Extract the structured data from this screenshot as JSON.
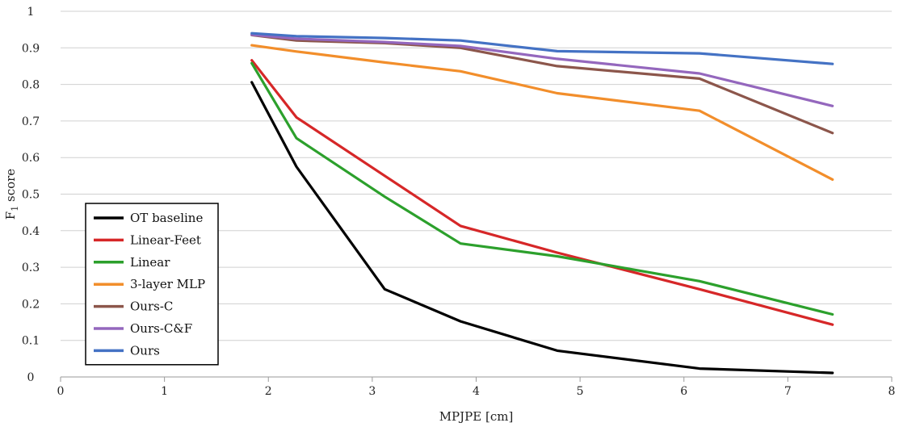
{
  "chart_data": {
    "type": "line",
    "xlabel": "MPJPE [cm]",
    "ylabel_main": "F",
    "ylabel_sub": "1",
    "ylabel_rest": " score",
    "xlim": [
      0,
      8
    ],
    "ylim": [
      0,
      1
    ],
    "x_ticks": [
      0,
      1,
      2,
      3,
      4,
      5,
      6,
      7,
      8
    ],
    "x_tick_labels": [
      "0",
      "1",
      "2",
      "3",
      "4",
      "5",
      "6",
      "7",
      "8"
    ],
    "y_ticks": [
      0,
      0.1,
      0.2,
      0.3,
      0.4,
      0.5,
      0.6,
      0.7,
      0.8,
      0.9,
      1
    ],
    "y_tick_labels": [
      "0",
      "0.1",
      "0.2",
      "0.3",
      "0.4",
      "0.5",
      "0.6",
      "0.7",
      "0.8",
      "0.9",
      "1"
    ],
    "grid": "horizontal",
    "legend_position": "bottom-left",
    "series": [
      {
        "name": "OT baseline",
        "color": "#000000",
        "x": [
          1.84,
          2.27,
          3.12,
          3.85,
          4.78,
          6.15,
          7.43
        ],
        "y": [
          0.806,
          0.575,
          0.24,
          0.152,
          0.072,
          0.023,
          0.011
        ]
      },
      {
        "name": "Linear-Feet",
        "color": "#d62728",
        "x": [
          1.84,
          2.27,
          3.12,
          3.85,
          4.78,
          6.15,
          7.43
        ],
        "y": [
          0.866,
          0.71,
          0.55,
          0.413,
          0.34,
          0.24,
          0.143
        ]
      },
      {
        "name": "Linear",
        "color": "#2ca02c",
        "x": [
          1.84,
          2.27,
          3.12,
          3.85,
          4.78,
          6.15,
          7.43
        ],
        "y": [
          0.858,
          0.653,
          0.493,
          0.365,
          0.33,
          0.262,
          0.171
        ]
      },
      {
        "name": "3-layer MLP",
        "color": "#f28e2b",
        "x": [
          1.84,
          2.27,
          3.12,
          3.85,
          4.78,
          6.15,
          7.43
        ],
        "y": [
          0.907,
          0.89,
          0.86,
          0.836,
          0.776,
          0.728,
          0.54
        ]
      },
      {
        "name": "Ours-C",
        "color": "#8c564b",
        "x": [
          1.84,
          2.27,
          3.12,
          3.85,
          4.78,
          6.15,
          7.43
        ],
        "y": [
          0.935,
          0.92,
          0.913,
          0.9,
          0.85,
          0.816,
          0.667
        ]
      },
      {
        "name": "Ours-C&F",
        "color": "#9467bd",
        "x": [
          1.84,
          2.27,
          3.12,
          3.85,
          4.78,
          6.15,
          7.43
        ],
        "y": [
          0.936,
          0.925,
          0.916,
          0.905,
          0.87,
          0.83,
          0.741
        ]
      },
      {
        "name": "Ours",
        "color": "#4472c4",
        "x": [
          1.84,
          2.27,
          3.12,
          3.85,
          4.78,
          6.15,
          7.43
        ],
        "y": [
          0.94,
          0.932,
          0.927,
          0.92,
          0.891,
          0.885,
          0.856
        ]
      }
    ]
  }
}
